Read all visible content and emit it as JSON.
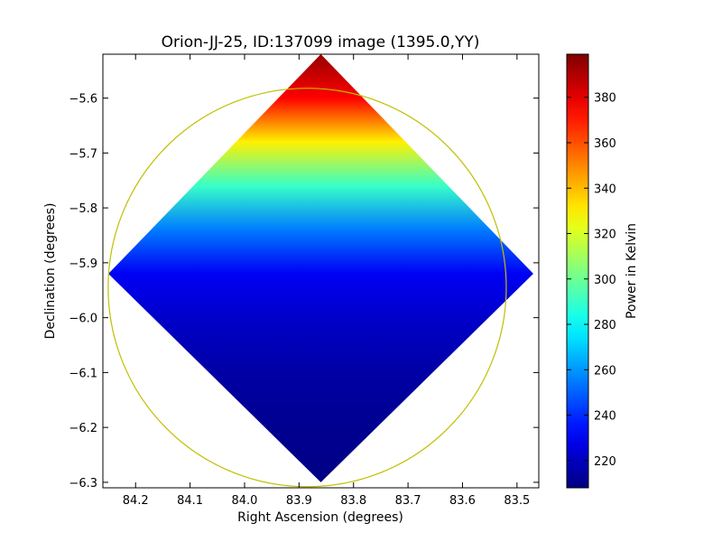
{
  "chart_data": {
    "type": "heatmap",
    "title": "Orion-JJ-25, ID:137099 image (1395.0,YY)",
    "xlabel": "Right Ascension (degrees)",
    "ylabel": "Declination (degrees)",
    "colorbar_label": "Power in Kelvin",
    "xlim": [
      84.26,
      83.46
    ],
    "ylim": [
      -6.31,
      -5.52
    ],
    "x_ticks": [
      84.2,
      84.1,
      84.0,
      83.9,
      83.8,
      83.7,
      83.6,
      83.5
    ],
    "x_tick_labels": [
      "84.2",
      "84.1",
      "84.0",
      "83.9",
      "83.8",
      "83.7",
      "83.6",
      "83.5"
    ],
    "y_ticks": [
      -5.6,
      -5.7,
      -5.8,
      -5.9,
      -6.0,
      -6.1,
      -6.2,
      -6.3
    ],
    "y_tick_labels": [
      "−5.6",
      "−5.7",
      "−5.8",
      "−5.9",
      "−6.0",
      "−6.1",
      "−6.2",
      "−6.3"
    ],
    "colorbar_range": [
      208,
      399
    ],
    "colorbar_ticks": [
      220,
      240,
      260,
      280,
      300,
      320,
      340,
      360,
      380
    ],
    "colorbar_tick_labels": [
      "220",
      "240",
      "260",
      "280",
      "300",
      "320",
      "340",
      "360",
      "380"
    ],
    "colormap": "jet",
    "map_footprint": {
      "shape": "diamond",
      "top": {
        "ra": 83.86,
        "dec": -5.52
      },
      "bottom": {
        "ra": 83.86,
        "dec": -6.3
      },
      "left": {
        "ra": 84.25,
        "dec": -5.92
      },
      "right": {
        "ra": 83.47,
        "dec": -5.92
      }
    },
    "value_profile_top_to_bottom": [
      {
        "dec": -5.52,
        "value": 395
      },
      {
        "dec": -5.6,
        "value": 375
      },
      {
        "dec": -5.68,
        "value": 330
      },
      {
        "dec": -5.76,
        "value": 290
      },
      {
        "dec": -5.84,
        "value": 255
      },
      {
        "dec": -5.92,
        "value": 230
      },
      {
        "dec": -6.0,
        "value": 222
      },
      {
        "dec": -6.1,
        "value": 215
      },
      {
        "dec": -6.2,
        "value": 211
      },
      {
        "dec": -6.3,
        "value": 209
      }
    ],
    "circle": {
      "center_ra": 83.885,
      "center_dec": -5.945,
      "radius_deg": 0.363,
      "color": "#bfbf00"
    },
    "grid": false,
    "legend": "none"
  }
}
